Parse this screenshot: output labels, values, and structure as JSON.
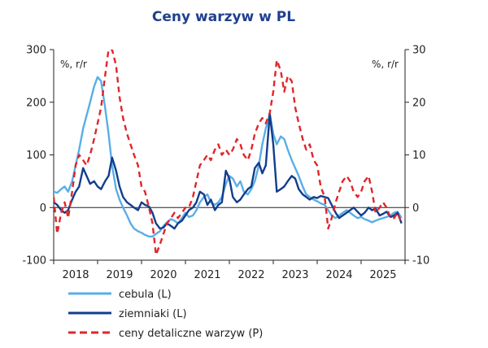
{
  "chart_data": {
    "type": "line",
    "title": "Ceny warzyw w PL",
    "left_axis": {
      "unit_label": "%, r/r",
      "ylim": [
        -100,
        300
      ],
      "ticks": [
        "300",
        "200",
        "100",
        "0",
        "-100"
      ]
    },
    "right_axis": {
      "unit_label": "%, r/r",
      "ylim": [
        -10,
        30
      ],
      "ticks": [
        "30",
        "20",
        "10",
        "0",
        "-10"
      ]
    },
    "x_axis": {
      "ticks": [
        "2018",
        "2019",
        "2020",
        "2021",
        "2022",
        "2023",
        "2024",
        "2025"
      ],
      "range": [
        2018.0,
        2026.0
      ]
    },
    "colors": {
      "cebula": "#5aaee6",
      "ziemniaki": "#123d8c",
      "ceny": "#e0262b",
      "title": "#1f3f8f",
      "axis": "#222222"
    },
    "series": [
      {
        "name": "cebula",
        "legend": "cebula (L)",
        "axis": "left",
        "style": "solid",
        "points": [
          [
            2018.0,
            30
          ],
          [
            2018.08,
            28
          ],
          [
            2018.17,
            35
          ],
          [
            2018.25,
            40
          ],
          [
            2018.33,
            30
          ],
          [
            2018.42,
            50
          ],
          [
            2018.5,
            80
          ],
          [
            2018.58,
            110
          ],
          [
            2018.67,
            150
          ],
          [
            2018.75,
            175
          ],
          [
            2018.83,
            200
          ],
          [
            2018.92,
            230
          ],
          [
            2019.0,
            248
          ],
          [
            2019.08,
            240
          ],
          [
            2019.17,
            190
          ],
          [
            2019.25,
            140
          ],
          [
            2019.33,
            80
          ],
          [
            2019.42,
            35
          ],
          [
            2019.5,
            15
          ],
          [
            2019.58,
            0
          ],
          [
            2019.67,
            -15
          ],
          [
            2019.75,
            -30
          ],
          [
            2019.83,
            -40
          ],
          [
            2019.92,
            -45
          ],
          [
            2020.0,
            -48
          ],
          [
            2020.08,
            -52
          ],
          [
            2020.17,
            -55
          ],
          [
            2020.25,
            -55
          ],
          [
            2020.33,
            -50
          ],
          [
            2020.42,
            -45
          ],
          [
            2020.5,
            -35
          ],
          [
            2020.58,
            -28
          ],
          [
            2020.67,
            -22
          ],
          [
            2020.75,
            -25
          ],
          [
            2020.83,
            -30
          ],
          [
            2020.92,
            -20
          ],
          [
            2021.0,
            -10
          ],
          [
            2021.08,
            -18
          ],
          [
            2021.17,
            -15
          ],
          [
            2021.25,
            -5
          ],
          [
            2021.33,
            10
          ],
          [
            2021.42,
            20
          ],
          [
            2021.5,
            25
          ],
          [
            2021.58,
            10
          ],
          [
            2021.67,
            5
          ],
          [
            2021.75,
            10
          ],
          [
            2021.83,
            20
          ],
          [
            2021.92,
            45
          ],
          [
            2022.0,
            60
          ],
          [
            2022.08,
            55
          ],
          [
            2022.17,
            40
          ],
          [
            2022.25,
            50
          ],
          [
            2022.33,
            30
          ],
          [
            2022.42,
            25
          ],
          [
            2022.5,
            35
          ],
          [
            2022.58,
            50
          ],
          [
            2022.67,
            80
          ],
          [
            2022.75,
            120
          ],
          [
            2022.83,
            150
          ],
          [
            2022.92,
            178
          ],
          [
            2023.0,
            140
          ],
          [
            2023.08,
            120
          ],
          [
            2023.17,
            135
          ],
          [
            2023.25,
            130
          ],
          [
            2023.33,
            110
          ],
          [
            2023.42,
            90
          ],
          [
            2023.5,
            75
          ],
          [
            2023.58,
            60
          ],
          [
            2023.67,
            40
          ],
          [
            2023.75,
            25
          ],
          [
            2023.83,
            20
          ],
          [
            2023.92,
            15
          ],
          [
            2024.0,
            12
          ],
          [
            2024.08,
            8
          ],
          [
            2024.17,
            5
          ],
          [
            2024.25,
            -5
          ],
          [
            2024.33,
            -15
          ],
          [
            2024.42,
            -20
          ],
          [
            2024.5,
            -15
          ],
          [
            2024.58,
            -10
          ],
          [
            2024.67,
            -5
          ],
          [
            2024.75,
            -10
          ],
          [
            2024.83,
            -15
          ],
          [
            2024.92,
            -20
          ],
          [
            2025.0,
            -18
          ],
          [
            2025.08,
            -22
          ],
          [
            2025.17,
            -25
          ],
          [
            2025.25,
            -28
          ],
          [
            2025.33,
            -25
          ],
          [
            2025.42,
            -22
          ],
          [
            2025.5,
            -20
          ],
          [
            2025.58,
            -18
          ],
          [
            2025.67,
            -15
          ],
          [
            2025.75,
            -10
          ],
          [
            2025.83,
            -8
          ],
          [
            2025.92,
            -20
          ]
        ]
      },
      {
        "name": "ziemniaki",
        "legend": "ziemniaki (L)",
        "axis": "left",
        "style": "solid",
        "points": [
          [
            2018.0,
            10
          ],
          [
            2018.08,
            5
          ],
          [
            2018.17,
            -5
          ],
          [
            2018.25,
            -10
          ],
          [
            2018.33,
            -5
          ],
          [
            2018.42,
            15
          ],
          [
            2018.5,
            30
          ],
          [
            2018.58,
            40
          ],
          [
            2018.67,
            75
          ],
          [
            2018.75,
            60
          ],
          [
            2018.83,
            45
          ],
          [
            2018.92,
            50
          ],
          [
            2019.0,
            40
          ],
          [
            2019.08,
            35
          ],
          [
            2019.17,
            50
          ],
          [
            2019.25,
            60
          ],
          [
            2019.33,
            95
          ],
          [
            2019.42,
            70
          ],
          [
            2019.5,
            40
          ],
          [
            2019.58,
            20
          ],
          [
            2019.67,
            10
          ],
          [
            2019.75,
            5
          ],
          [
            2019.83,
            0
          ],
          [
            2019.92,
            -5
          ],
          [
            2020.0,
            10
          ],
          [
            2020.08,
            5
          ],
          [
            2020.17,
            2
          ],
          [
            2020.25,
            -10
          ],
          [
            2020.33,
            -30
          ],
          [
            2020.42,
            -40
          ],
          [
            2020.5,
            -38
          ],
          [
            2020.58,
            -30
          ],
          [
            2020.67,
            -35
          ],
          [
            2020.75,
            -40
          ],
          [
            2020.83,
            -30
          ],
          [
            2020.92,
            -25
          ],
          [
            2021.0,
            -15
          ],
          [
            2021.08,
            -5
          ],
          [
            2021.17,
            0
          ],
          [
            2021.25,
            10
          ],
          [
            2021.33,
            30
          ],
          [
            2021.42,
            25
          ],
          [
            2021.5,
            5
          ],
          [
            2021.58,
            15
          ],
          [
            2021.67,
            -5
          ],
          [
            2021.75,
            5
          ],
          [
            2021.83,
            10
          ],
          [
            2021.92,
            70
          ],
          [
            2022.0,
            55
          ],
          [
            2022.08,
            20
          ],
          [
            2022.17,
            10
          ],
          [
            2022.25,
            15
          ],
          [
            2022.33,
            25
          ],
          [
            2022.42,
            35
          ],
          [
            2022.5,
            40
          ],
          [
            2022.58,
            75
          ],
          [
            2022.67,
            85
          ],
          [
            2022.75,
            65
          ],
          [
            2022.83,
            80
          ],
          [
            2022.92,
            178
          ],
          [
            2023.0,
            120
          ],
          [
            2023.08,
            30
          ],
          [
            2023.17,
            35
          ],
          [
            2023.25,
            40
          ],
          [
            2023.33,
            50
          ],
          [
            2023.42,
            60
          ],
          [
            2023.5,
            55
          ],
          [
            2023.58,
            35
          ],
          [
            2023.67,
            25
          ],
          [
            2023.75,
            20
          ],
          [
            2023.83,
            15
          ],
          [
            2023.92,
            20
          ],
          [
            2024.0,
            18
          ],
          [
            2024.08,
            22
          ],
          [
            2024.17,
            20
          ],
          [
            2024.25,
            18
          ],
          [
            2024.33,
            5
          ],
          [
            2024.42,
            -10
          ],
          [
            2024.5,
            -20
          ],
          [
            2024.58,
            -15
          ],
          [
            2024.67,
            -10
          ],
          [
            2024.75,
            -5
          ],
          [
            2024.83,
            0
          ],
          [
            2024.92,
            -8
          ],
          [
            2025.0,
            -15
          ],
          [
            2025.08,
            -10
          ],
          [
            2025.17,
            0
          ],
          [
            2025.25,
            -5
          ],
          [
            2025.33,
            -2
          ],
          [
            2025.42,
            -15
          ],
          [
            2025.5,
            -12
          ],
          [
            2025.58,
            -8
          ],
          [
            2025.67,
            -18
          ],
          [
            2025.75,
            -15
          ],
          [
            2025.83,
            -10
          ],
          [
            2025.92,
            -30
          ]
        ]
      },
      {
        "name": "ceny detaliczne warzyw",
        "legend": "ceny detaliczne warzyw (P)",
        "axis": "right",
        "style": "dashed",
        "points": [
          [
            2018.0,
            2
          ],
          [
            2018.08,
            -5
          ],
          [
            2018.17,
            -1
          ],
          [
            2018.25,
            1
          ],
          [
            2018.33,
            -2
          ],
          [
            2018.42,
            3
          ],
          [
            2018.5,
            8
          ],
          [
            2018.58,
            10
          ],
          [
            2018.67,
            9
          ],
          [
            2018.75,
            8
          ],
          [
            2018.83,
            10
          ],
          [
            2018.92,
            13
          ],
          [
            2019.0,
            16
          ],
          [
            2019.08,
            19
          ],
          [
            2019.17,
            25
          ],
          [
            2019.25,
            30
          ],
          [
            2019.33,
            30
          ],
          [
            2019.42,
            27
          ],
          [
            2019.5,
            21
          ],
          [
            2019.58,
            17
          ],
          [
            2019.67,
            14
          ],
          [
            2019.75,
            12
          ],
          [
            2019.83,
            10
          ],
          [
            2019.92,
            8
          ],
          [
            2020.0,
            4
          ],
          [
            2020.08,
            3
          ],
          [
            2020.17,
            0
          ],
          [
            2020.25,
            -3
          ],
          [
            2020.33,
            -9
          ],
          [
            2020.42,
            -7
          ],
          [
            2020.5,
            -5
          ],
          [
            2020.58,
            -3
          ],
          [
            2020.67,
            -2
          ],
          [
            2020.75,
            -1
          ],
          [
            2020.83,
            -2
          ],
          [
            2020.92,
            -1
          ],
          [
            2021.0,
            0
          ],
          [
            2021.08,
            0
          ],
          [
            2021.17,
            2
          ],
          [
            2021.25,
            5
          ],
          [
            2021.33,
            8
          ],
          [
            2021.42,
            9
          ],
          [
            2021.5,
            10
          ],
          [
            2021.58,
            9
          ],
          [
            2021.67,
            11
          ],
          [
            2021.75,
            12
          ],
          [
            2021.83,
            10
          ],
          [
            2021.92,
            11
          ],
          [
            2022.0,
            10
          ],
          [
            2022.08,
            11
          ],
          [
            2022.17,
            13
          ],
          [
            2022.25,
            12
          ],
          [
            2022.33,
            10
          ],
          [
            2022.42,
            9
          ],
          [
            2022.5,
            11
          ],
          [
            2022.58,
            14
          ],
          [
            2022.67,
            16
          ],
          [
            2022.75,
            17
          ],
          [
            2022.83,
            16
          ],
          [
            2022.92,
            18
          ],
          [
            2023.0,
            22
          ],
          [
            2023.08,
            28
          ],
          [
            2023.17,
            26
          ],
          [
            2023.25,
            22
          ],
          [
            2023.33,
            25
          ],
          [
            2023.42,
            24
          ],
          [
            2023.5,
            19
          ],
          [
            2023.58,
            16
          ],
          [
            2023.67,
            13
          ],
          [
            2023.75,
            11
          ],
          [
            2023.83,
            12
          ],
          [
            2023.92,
            9
          ],
          [
            2024.0,
            8
          ],
          [
            2024.08,
            4
          ],
          [
            2024.17,
            2
          ],
          [
            2024.25,
            -4
          ],
          [
            2024.33,
            -2
          ],
          [
            2024.42,
            1
          ],
          [
            2024.5,
            3
          ],
          [
            2024.58,
            5
          ],
          [
            2024.67,
            6
          ],
          [
            2024.75,
            5
          ],
          [
            2024.83,
            3
          ],
          [
            2024.92,
            2
          ],
          [
            2025.0,
            3
          ],
          [
            2025.08,
            5
          ],
          [
            2025.17,
            6
          ],
          [
            2025.25,
            3
          ],
          [
            2025.33,
            -1
          ],
          [
            2025.42,
            0
          ],
          [
            2025.5,
            1
          ],
          [
            2025.58,
            0
          ],
          [
            2025.67,
            -2
          ],
          [
            2025.75,
            -2
          ],
          [
            2025.83,
            -1
          ],
          [
            2025.92,
            -3
          ]
        ]
      }
    ]
  }
}
